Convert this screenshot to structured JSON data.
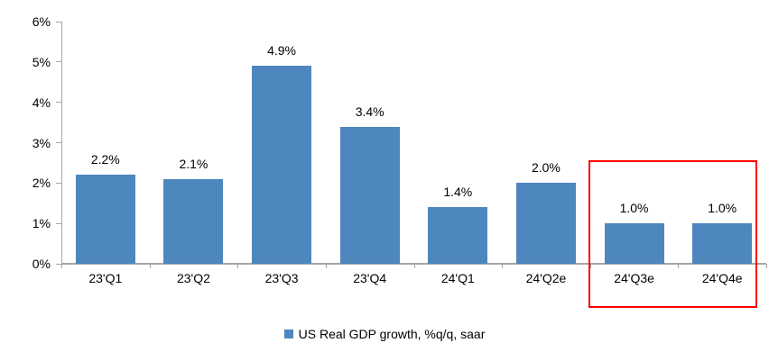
{
  "chart_data": {
    "type": "bar",
    "title": "",
    "categories": [
      "23'Q1",
      "23'Q2",
      "23'Q3",
      "23'Q4",
      "24'Q1",
      "24'Q2e",
      "24'Q3e",
      "24'Q4e"
    ],
    "values": [
      2.2,
      2.1,
      4.9,
      3.4,
      1.4,
      2.0,
      1.0,
      1.0
    ],
    "value_labels": [
      "2.2%",
      "2.1%",
      "4.9%",
      "3.4%",
      "1.4%",
      "2.0%",
      "1.0%",
      "1.0%"
    ],
    "ylim": [
      0,
      6
    ],
    "ytick_labels": [
      "0%",
      "1%",
      "2%",
      "3%",
      "4%",
      "5%",
      "6%"
    ],
    "grid": false,
    "legend": [
      "US Real GDP growth, %q/q, saar"
    ],
    "legend_position": "bottom-center",
    "bar_color": "#4e86be",
    "axis_color": "#a6a6a6",
    "highlight": {
      "categories": [
        "24'Q3e",
        "24'Q4e"
      ],
      "box_color": "#ff0000"
    }
  }
}
